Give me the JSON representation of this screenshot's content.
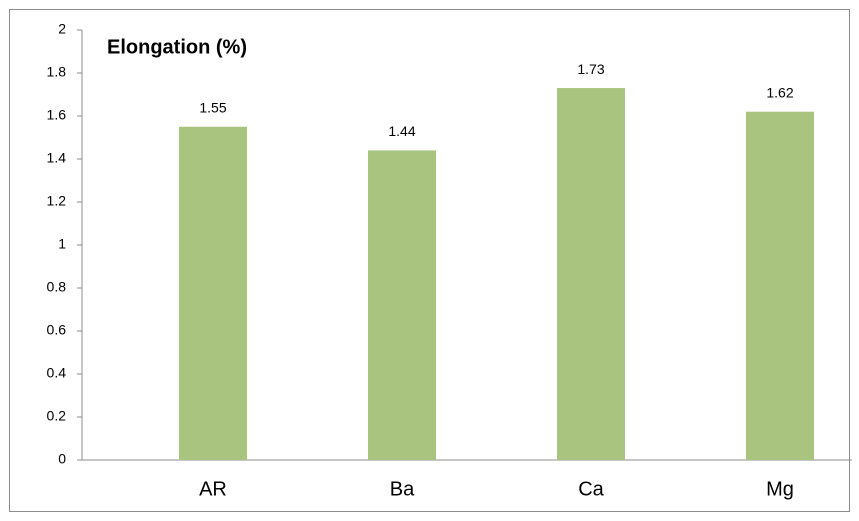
{
  "chart_data": {
    "type": "bar",
    "title": "Elongation (%)",
    "categories": [
      "AR",
      "Ba",
      "Ca",
      "Mg"
    ],
    "values": [
      1.55,
      1.44,
      1.73,
      1.62
    ],
    "color": "#a9c47f",
    "ylim": [
      0,
      2
    ],
    "yticks": [
      0,
      0.2,
      0.4,
      0.6,
      0.8,
      1,
      1.2,
      1.4,
      1.6,
      1.8,
      2
    ],
    "grid": false
  }
}
